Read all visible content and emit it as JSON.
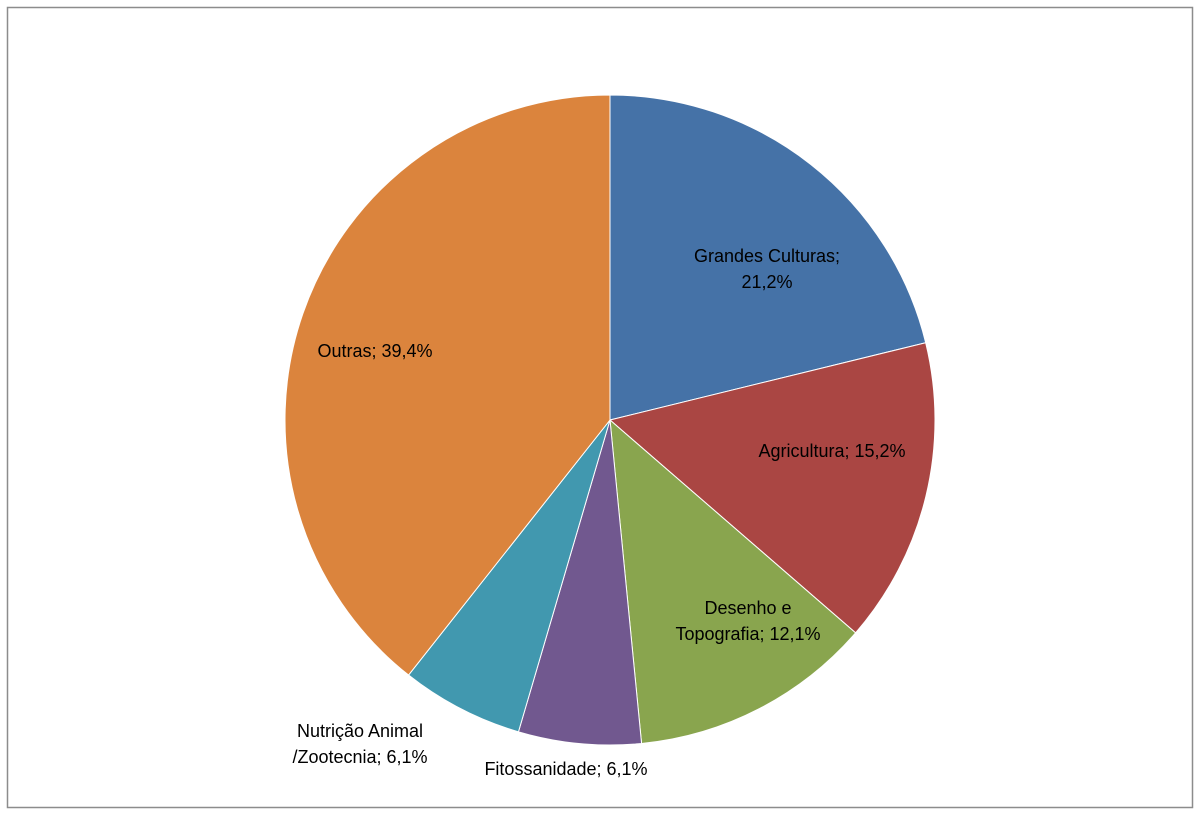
{
  "chart_data": {
    "type": "pie",
    "values": [
      21.2,
      15.2,
      12.1,
      6.1,
      6.1,
      39.4
    ],
    "value_labels": [
      [
        "Grandes Culturas;",
        "21,2%"
      ],
      [
        "Agricultura; 15,2%"
      ],
      [
        "Desenho e",
        "Topografia; 12,1%"
      ],
      [
        "Fitossanidade; 6,1%"
      ],
      [
        "Nutrição Animal",
        "/Zootecnia; 6,1%"
      ],
      [
        "Outras; 39,4%"
      ]
    ],
    "colors": [
      "#4572a7",
      "#aa4643",
      "#89a54e",
      "#71588f",
      "#4198af",
      "#db843d"
    ]
  }
}
